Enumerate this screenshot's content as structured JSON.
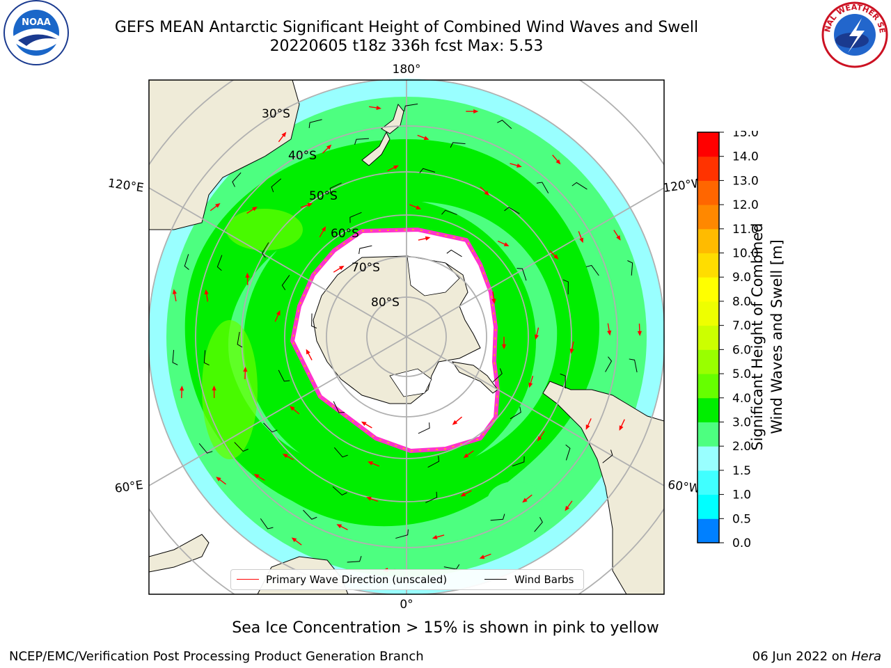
{
  "title_line1": "GEFS MEAN Antarctic Significant Height of Combined Wind Waves and Swell",
  "title_line2": "20220605 t18z 336h fcst   Max: 5.53",
  "noaa_logo_text": "NOAA",
  "nws_logo_text": "NATIONAL WEATHER SERVICE",
  "longitude_labels": {
    "top": "180°",
    "bottom": "0°",
    "upper_left": "120°E",
    "lower_left": "60°E",
    "upper_right": "120°W",
    "lower_right": "60°W"
  },
  "latitude_labels": [
    "30°S",
    "40°S",
    "50°S",
    "60°S",
    "70°S",
    "80°S"
  ],
  "legend": {
    "wave": "Primary Wave Direction (unscaled)",
    "wind": "Wind Barbs"
  },
  "colorbar": {
    "label_line1": "Significant Height of Combined",
    "label_line2": "Wind Waves and Swell [m]",
    "ticks": [
      "15.0",
      "14.0",
      "13.0",
      "12.0",
      "11.0",
      "10.0",
      "9.0",
      "8.0",
      "7.0",
      "6.0",
      "5.0",
      "4.0",
      "3.0",
      "2.0",
      "1.5",
      "1.0",
      "0.5",
      "0.0"
    ],
    "colors": [
      "#0000ff",
      "#0080ff",
      "#00ffff",
      "#40ffff",
      "#99ffff",
      "#4dff80",
      "#00ee00",
      "#66ff00",
      "#99ff00",
      "#ccff00",
      "#eeff00",
      "#ffff00",
      "#ffdd00",
      "#ffbb00",
      "#ff8800",
      "#ff6600",
      "#ff3300",
      "#ff0000"
    ]
  },
  "map_colors": {
    "land": "#efebd8",
    "ice": "#ffffff",
    "sea_ice_edge": "#ff33cc",
    "wave_arrow": "#ff0000",
    "barb": "#000000"
  },
  "note": "Sea Ice Concentration > 15% is shown in pink to yellow",
  "credit": "NCEP/EMC/Verification Post Processing Product Generation Branch",
  "date": "06 Jun 2022 on",
  "host": "Hera"
}
